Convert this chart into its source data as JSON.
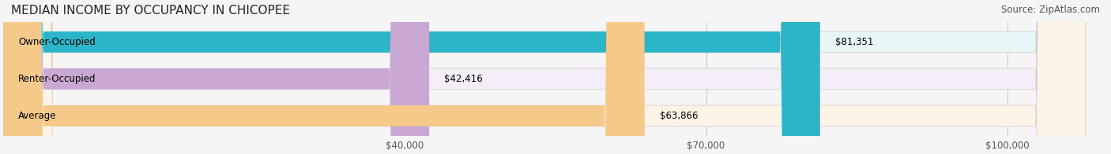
{
  "title": "MEDIAN INCOME BY OCCUPANCY IN CHICOPEE",
  "source": "Source: ZipAtlas.com",
  "categories": [
    "Owner-Occupied",
    "Renter-Occupied",
    "Average"
  ],
  "values": [
    81351,
    42416,
    63866
  ],
  "bar_colors": [
    "#2bb5c8",
    "#c9a8d4",
    "#f5c98a"
  ],
  "bar_bg_colors": [
    "#e8f6f8",
    "#f3eef7",
    "#fdf3e7"
  ],
  "label_texts": [
    "$81,351",
    "$42,416",
    "$63,866"
  ],
  "x_ticks": [
    40000,
    70000,
    100000
  ],
  "x_tick_labels": [
    "$40,000",
    "$70,000",
    "$100,000"
  ],
  "xlim": [
    0,
    110000
  ],
  "bar_height": 0.55,
  "figsize": [
    14.06,
    1.96
  ],
  "dpi": 100,
  "title_fontsize": 11,
  "label_fontsize": 8.5,
  "tick_fontsize": 8.5,
  "source_fontsize": 8.5
}
